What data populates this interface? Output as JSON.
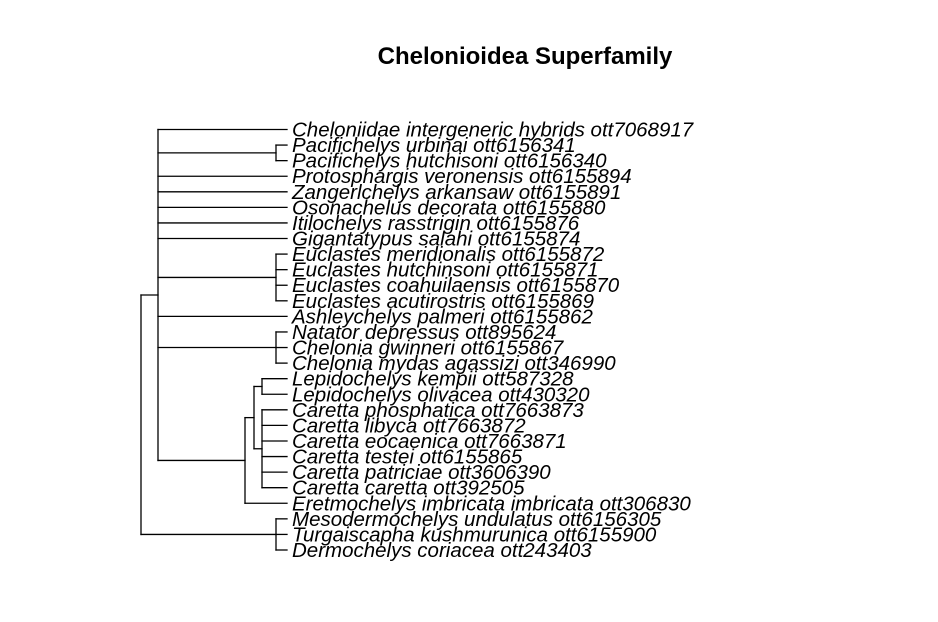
{
  "title": "Chelonioidea Superfamily",
  "tree": {
    "tips": [
      "Cheloniidae intergeneric hybrids ott7068917",
      "Pacifichelys urbinai ott6156341",
      "Pacifichelys hutchisoni ott6156340",
      "Protosphargis veronensis ott6155894",
      "Zangerlchelys arkansaw ott6155891",
      "Osonachelus decorata ott6155880",
      "Itilochelys rasstrigin ott6155876",
      "Gigantatypus salahi ott6155874",
      "Euclastes meridionalis ott6155872",
      "Euclastes hutchinsoni ott6155871",
      "Euclastes coahuilaensis ott6155870",
      "Euclastes acutirostris ott6155869",
      "Ashleychelys palmeri ott6155862",
      "Natator depressus ott895624",
      "Chelonia gwinneri ott6155867",
      "Chelonia mydas agassizi ott346990",
      "Lepidochelys kempii ott587328",
      "Lepidochelys olivacea ott430320",
      "Caretta phosphatica ott7663873",
      "Caretta libyca ott7663872",
      "Caretta eocaenica ott7663871",
      "Caretta testei ott6155865",
      "Caretta patriciae ott3606390",
      "Caretta caretta ott392505",
      "Eretmochelys imbricata imbricata ott306830",
      "Mesodermochelys undulatus ott6156305",
      "Turgaiscapha kushmurunica ott6155900",
      "Dermochelys coriacea ott243403"
    ],
    "root": {
      "children": [
        {
          "children": [
            {
              "tip": 0
            },
            {
              "children": [
                {
                  "tip": 1
                },
                {
                  "tip": 2
                }
              ]
            },
            {
              "tip": 3
            },
            {
              "tip": 4
            },
            {
              "tip": 5
            },
            {
              "tip": 6
            },
            {
              "tip": 7
            },
            {
              "children": [
                {
                  "tip": 8
                },
                {
                  "tip": 9
                },
                {
                  "tip": 10
                },
                {
                  "tip": 11
                }
              ]
            },
            {
              "tip": 12
            },
            {
              "children": [
                {
                  "tip": 13
                },
                {
                  "tip": 14
                },
                {
                  "tip": 15
                }
              ]
            },
            {
              "children": [
                {
                  "children": [
                    {
                      "children": [
                        {
                          "tip": 16
                        },
                        {
                          "tip": 17
                        }
                      ]
                    },
                    {
                      "children": [
                        {
                          "tip": 18
                        },
                        {
                          "tip": 19
                        },
                        {
                          "tip": 20
                        },
                        {
                          "tip": 21
                        },
                        {
                          "tip": 22
                        },
                        {
                          "tip": 23
                        }
                      ]
                    }
                  ]
                },
                {
                  "tip": 24
                }
              ]
            }
          ]
        },
        {
          "children": [
            {
              "tip": 25
            },
            {
              "tip": 26
            },
            {
              "tip": 27
            }
          ]
        }
      ]
    }
  }
}
